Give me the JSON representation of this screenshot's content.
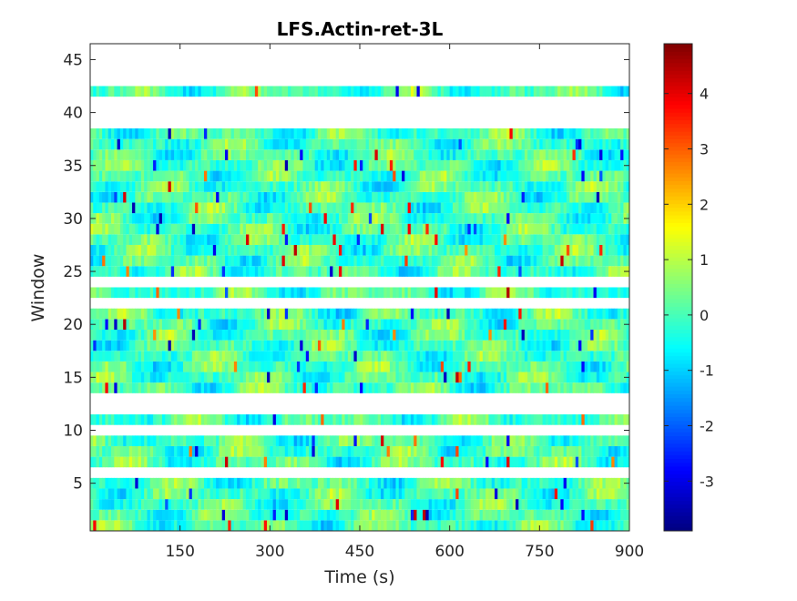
{
  "chart_data": {
    "type": "heatmap",
    "title": "LFS.Actin-ret-3L",
    "xlabel": "Time (s)",
    "ylabel": "Window",
    "xlim": [
      0,
      900
    ],
    "ylim": [
      0.5,
      46.5
    ],
    "x_ticks": [
      150,
      300,
      450,
      600,
      750,
      900
    ],
    "y_ticks": [
      5,
      10,
      15,
      20,
      25,
      30,
      35,
      40,
      45
    ],
    "colormap": "jet",
    "color_limits": [
      -3.9,
      4.9
    ],
    "colorbar_ticks": [
      -3,
      -2,
      -1,
      0,
      1,
      2,
      3,
      4
    ],
    "colorbar_location": "right",
    "grid": false,
    "empty_windows": [
      6,
      10,
      12,
      13,
      22,
      24,
      39,
      40,
      41,
      43,
      44,
      45,
      46
    ],
    "value_notes": "Values mostly between -1 and 1 (cyan/green/pale); sparse extremes reach about -3.5 (dark blue) and 4.5 (red), e.g. near t=150-200 s windows 35-38 and t=640 s window 8.",
    "colors": {
      "empty_cell": "#ffffff",
      "axis": "#262626"
    }
  }
}
